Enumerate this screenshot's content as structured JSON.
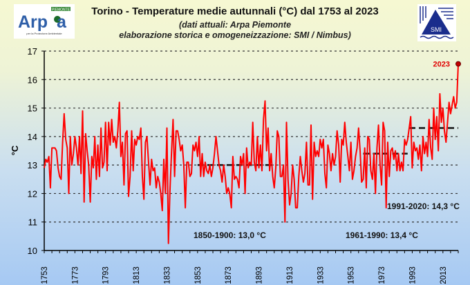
{
  "header": {
    "title": "Torino - Temperature medie autunnali (°C) dal 1753 al 2023",
    "subtitle1": "(dati attuali: Arpa Piemonte",
    "subtitle2": "elaborazione storica e omogeneizzazione: SMI / Nimbus)"
  },
  "logos": {
    "left": {
      "text": "Arpa",
      "badge": "PIEMONTE",
      "caption": "Agenzia Regionale per la Protezione Ambientale"
    },
    "right": {
      "text": "SMI"
    }
  },
  "colors": {
    "series": "#ff0000",
    "average": "#111111",
    "grid": "#333333",
    "highlight": "#e00000"
  },
  "chart_data": {
    "type": "line",
    "title": "Torino - Temperature medie autunnali (°C) dal 1753 al 2023",
    "ylabel": "°C",
    "xlabel": "",
    "xlim": [
      1753,
      2023
    ],
    "ylim": [
      10,
      17
    ],
    "yticks": [
      10,
      11,
      12,
      13,
      14,
      15,
      16,
      17
    ],
    "xticks": [
      1753,
      1773,
      1793,
      1813,
      1833,
      1853,
      1873,
      1893,
      1913,
      1933,
      1953,
      1973,
      1993,
      2013
    ],
    "grid": "horizontal dotted",
    "x_start": 1753,
    "values": [
      12.9,
      13.2,
      13.1,
      13.3,
      12.2,
      13.6,
      13.6,
      13.6,
      13.5,
      12.9,
      12.6,
      12.5,
      13.8,
      14.8,
      13.9,
      13.6,
      12.0,
      14.0,
      13.0,
      13.4,
      14.0,
      13.6,
      13.0,
      14.0,
      12.7,
      14.9,
      11.7,
      14.1,
      13.5,
      13.0,
      11.7,
      13.3,
      12.9,
      14.0,
      12.5,
      13.7,
      12.6,
      14.3,
      12.9,
      13.1,
      14.5,
      12.8,
      14.5,
      13.7,
      14.6,
      13.8,
      14.0,
      13.6,
      14.2,
      15.2,
      13.3,
      13.8,
      12.3,
      14.1,
      14.2,
      11.9,
      12.6,
      14.2,
      12.8,
      13.9,
      13.7,
      14.0,
      13.9,
      14.3,
      12.6,
      11.8,
      13.8,
      14.0,
      13.1,
      12.3,
      13.2,
      12.8,
      12.9,
      12.2,
      12.6,
      12.4,
      12.0,
      11.4,
      13.2,
      12.0,
      14.3,
      10.25,
      12.1,
      13.4,
      14.6,
      12.6,
      14.2,
      14.2,
      13.9,
      13.5,
      13.7,
      13.0,
      11.5,
      13.1,
      13.1,
      12.6,
      12.7,
      13.7,
      13.5,
      13.8,
      13.3,
      14.0,
      12.6,
      13.4,
      12.6,
      13.1,
      12.8,
      12.7,
      13.0,
      12.6,
      12.9,
      13.4,
      14.0,
      13.5,
      13.0,
      12.8,
      12.4,
      13.0,
      12.6,
      12.0,
      12.2,
      12.0,
      11.5,
      13.3,
      12.5,
      12.6,
      12.5,
      12.2,
      13.3,
      13.0,
      13.4,
      12.0,
      13.6,
      12.9,
      13.1,
      13.0,
      14.5,
      13.1,
      12.8,
      14.0,
      12.9,
      13.7,
      12.8,
      14.6,
      15.25,
      13.5,
      14.3,
      12.8,
      13.4,
      12.6,
      12.2,
      12.9,
      14.2,
      14.0,
      12.6,
      12.6,
      13.0,
      11.0,
      14.5,
      12.5,
      11.6,
      12.0,
      13.0,
      12.5,
      11.5,
      11.5,
      12.6,
      13.3,
      12.8,
      12.4,
      12.7,
      13.8,
      12.3,
      12.3,
      14.4,
      11.8,
      13.8,
      13.3,
      13.5,
      13.3,
      13.9,
      13.6,
      13.9,
      12.7,
      12.2,
      13.7,
      13.4,
      12.8,
      13.4,
      13.0,
      13.3,
      14.2,
      13.7,
      12.4,
      13.9,
      13.7,
      14.5,
      13.8,
      13.3,
      12.8,
      13.8,
      12.5,
      12.8,
      13.3,
      13.6,
      14.3,
      13.5,
      12.4,
      12.5,
      13.6,
      12.2,
      14.0,
      13.9,
      12.8,
      12.5,
      13.4,
      12.0,
      13.6,
      14.4,
      13.0,
      12.3,
      14.5,
      14.2,
      11.5,
      13.8,
      12.6,
      13.5,
      13.6,
      13.2,
      13.5,
      12.8,
      13.4,
      12.8,
      13.1,
      12.8,
      13.9,
      13.7,
      13.9,
      14.3,
      14.7,
      12.9,
      13.8,
      13.5,
      13.6,
      13.2,
      13.7,
      12.8,
      14.0,
      13.4,
      13.8,
      13.3,
      14.6,
      13.6,
      13.2,
      15.0,
      13.9,
      14.7,
      13.5,
      15.5,
      14.5,
      15.0,
      14.2,
      13.8,
      14.5,
      15.2,
      14.8,
      15.1,
      15.4,
      15.0,
      15.2,
      16.55
    ],
    "averages": [
      {
        "label": "1850-1900: 13,0 °C",
        "from": 1853,
        "to": 1903,
        "value": 13.0
      },
      {
        "label": "1961-1990: 13,4 °C",
        "from": 1961,
        "to": 1990,
        "value": 13.4
      },
      {
        "label": "1991-2020: 14,3 °C",
        "from": 1991,
        "to": 2023,
        "value": 14.3
      }
    ],
    "highlight": {
      "year": 2023,
      "label": "2023",
      "value": 16.55
    }
  }
}
